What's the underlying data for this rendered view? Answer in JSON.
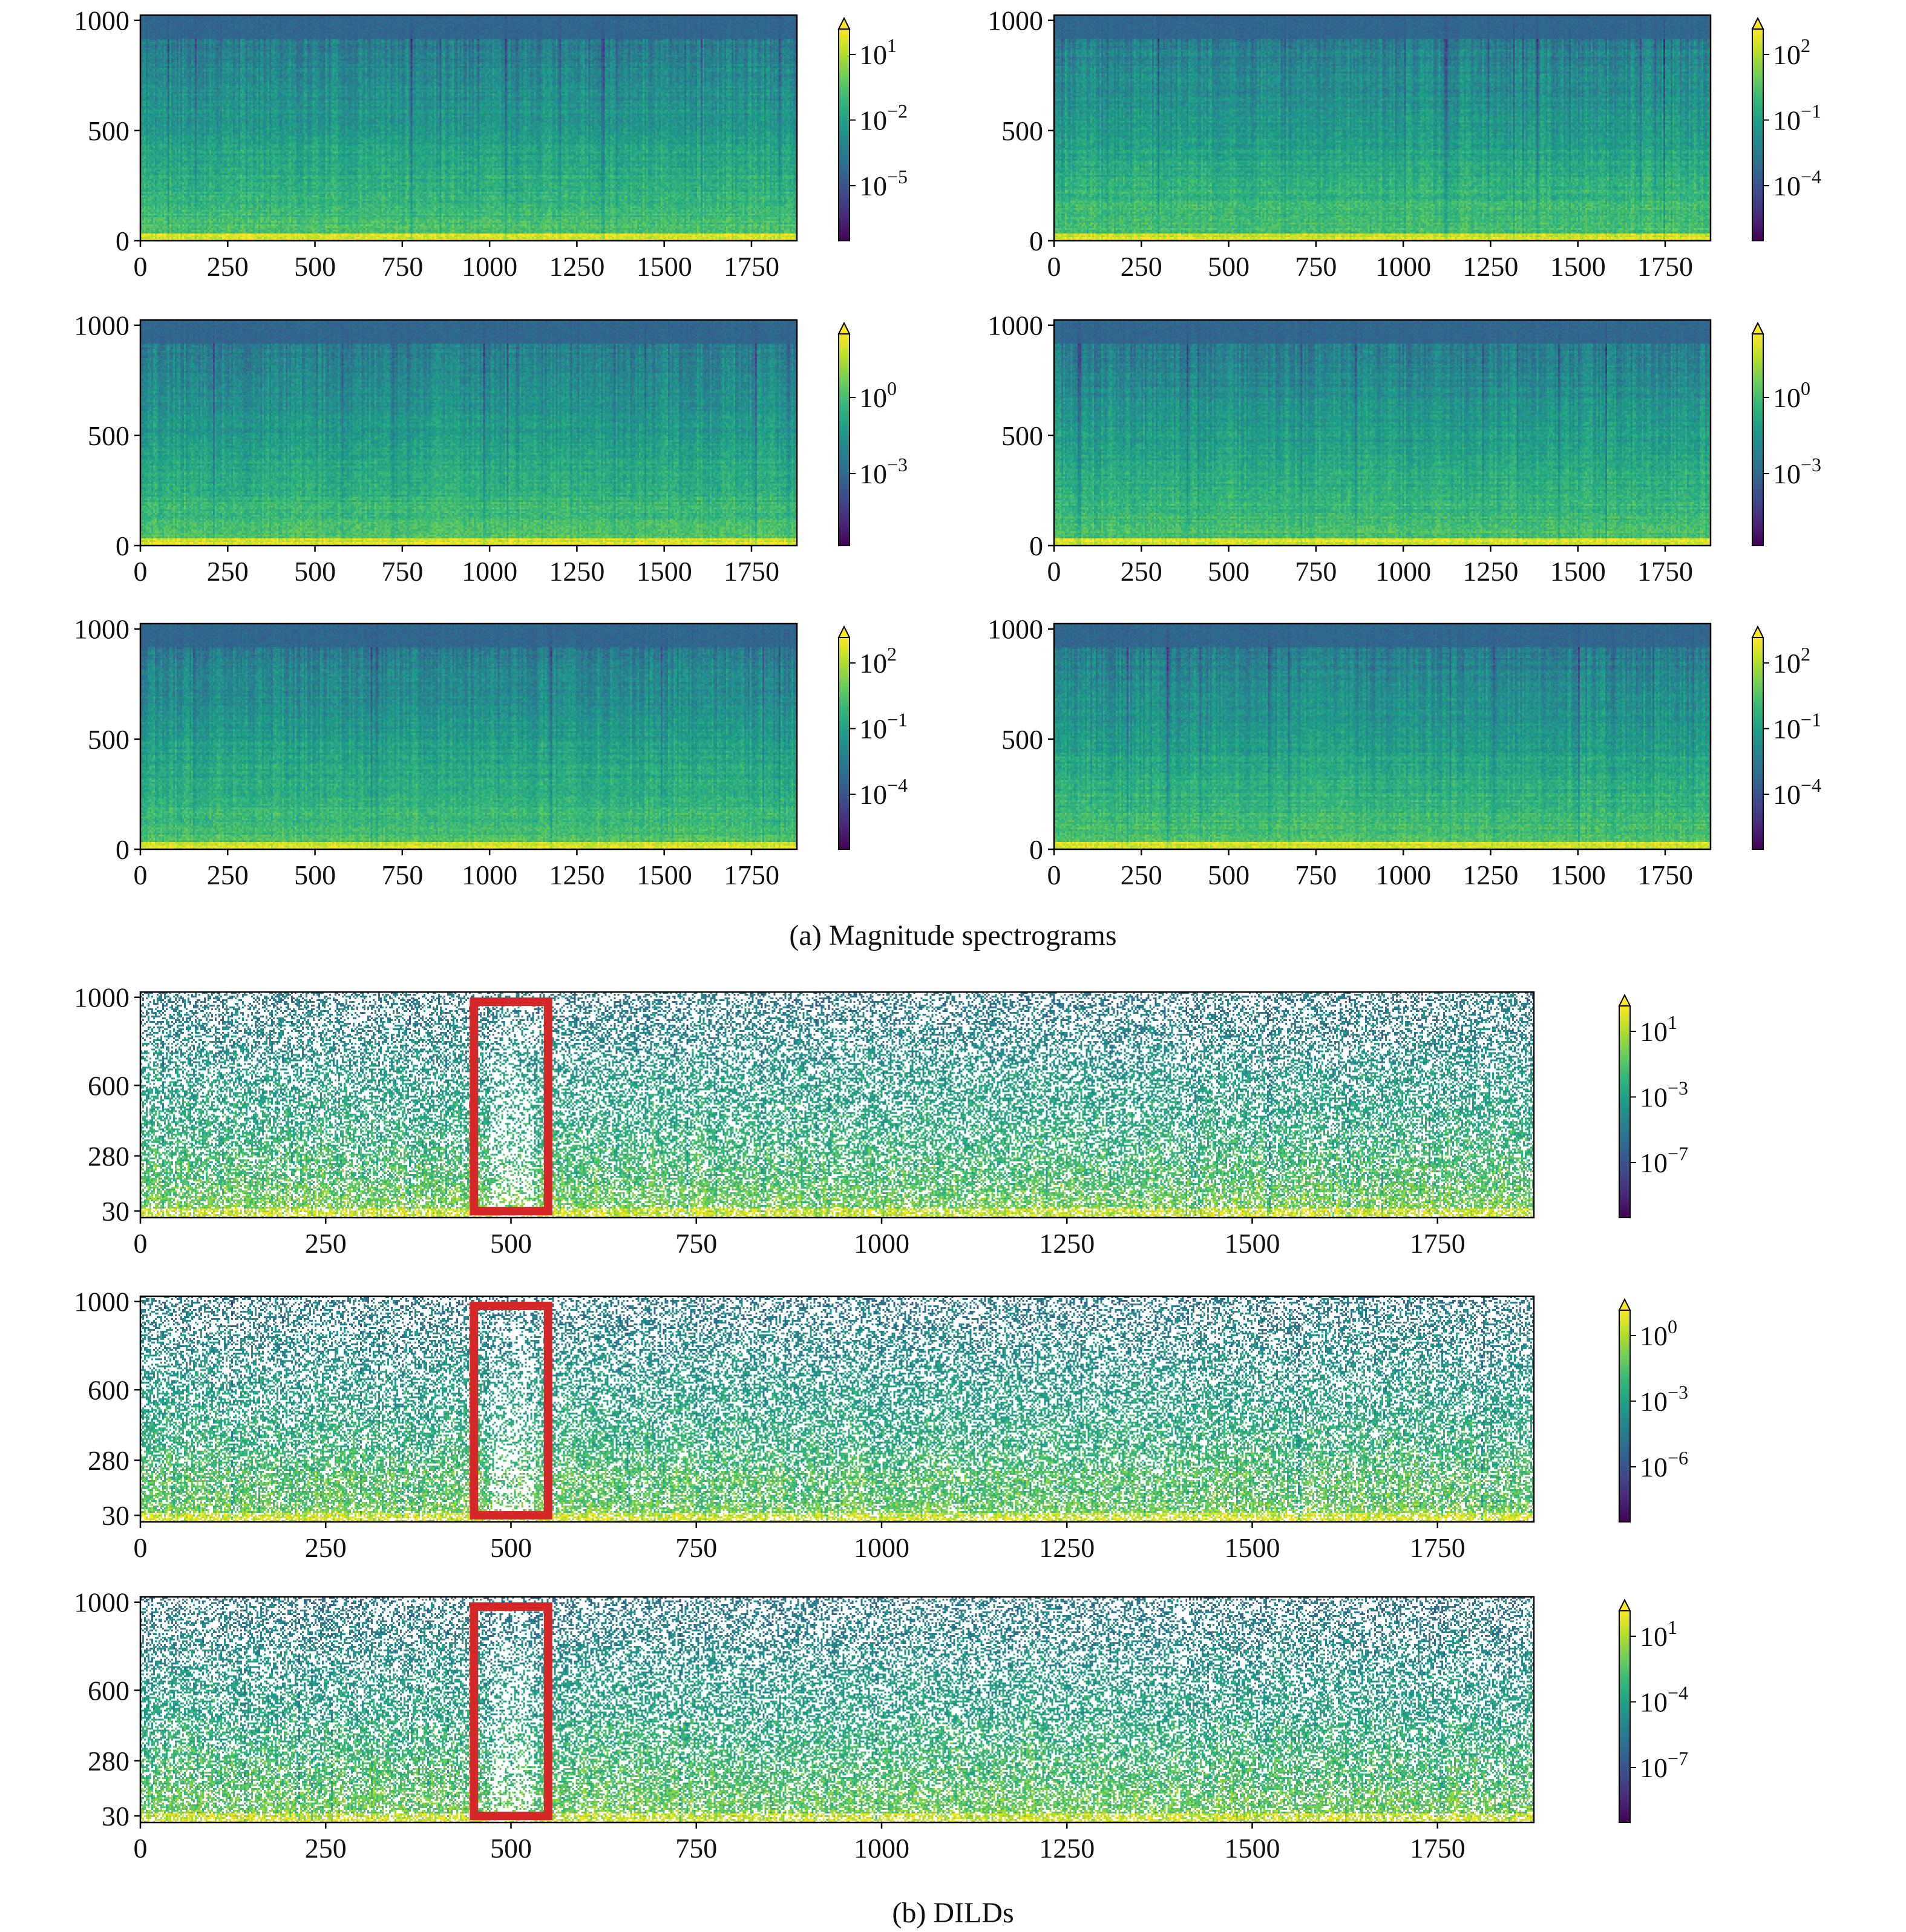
{
  "figure": {
    "caption_a": "(a) Magnitude spectrograms",
    "caption_b": "(b) DILDs"
  },
  "colormap": [
    "#440154",
    "#482878",
    "#3e4a89",
    "#31688e",
    "#26828e",
    "#1f9e89",
    "#35b779",
    "#6ece58",
    "#b5de2b",
    "#fde725"
  ],
  "chart_data": [
    {
      "id": "a1",
      "group": "a",
      "type": "heatmap",
      "style": "spectrogram",
      "title": "",
      "xlabel": "",
      "ylabel": "",
      "xlim": [
        0,
        1880
      ],
      "ylim": [
        0,
        1024
      ],
      "xticks": [
        0,
        250,
        500,
        750,
        1000,
        1250,
        1500,
        1750
      ],
      "yticks": [
        0,
        500,
        1000
      ],
      "colorbar": {
        "scale": "log",
        "extend": "max",
        "ticks": [
          {
            "label": "10",
            "exp": "1"
          },
          {
            "label": "10",
            "exp": "−2"
          },
          {
            "label": "10",
            "exp": "−5"
          }
        ]
      },
      "seed": 11
    },
    {
      "id": "a2",
      "group": "a",
      "type": "heatmap",
      "style": "spectrogram",
      "title": "",
      "xlabel": "",
      "ylabel": "",
      "xlim": [
        0,
        1880
      ],
      "ylim": [
        0,
        1024
      ],
      "xticks": [
        0,
        250,
        500,
        750,
        1000,
        1250,
        1500,
        1750
      ],
      "yticks": [
        0,
        500,
        1000
      ],
      "colorbar": {
        "scale": "log",
        "extend": "max",
        "ticks": [
          {
            "label": "10",
            "exp": "2"
          },
          {
            "label": "10",
            "exp": "−1"
          },
          {
            "label": "10",
            "exp": "−4"
          }
        ]
      },
      "seed": 23
    },
    {
      "id": "a3",
      "group": "a",
      "type": "heatmap",
      "style": "spectrogram",
      "title": "",
      "xlabel": "",
      "ylabel": "",
      "xlim": [
        0,
        1880
      ],
      "ylim": [
        0,
        1024
      ],
      "xticks": [
        0,
        250,
        500,
        750,
        1000,
        1250,
        1500,
        1750
      ],
      "yticks": [
        0,
        500,
        1000
      ],
      "colorbar": {
        "scale": "log",
        "extend": "max",
        "ticks": [
          {
            "label": "10",
            "exp": "0"
          },
          {
            "label": "10",
            "exp": "−3"
          }
        ]
      },
      "seed": 37
    },
    {
      "id": "a4",
      "group": "a",
      "type": "heatmap",
      "style": "spectrogram",
      "title": "",
      "xlabel": "",
      "ylabel": "",
      "xlim": [
        0,
        1880
      ],
      "ylim": [
        0,
        1024
      ],
      "xticks": [
        0,
        250,
        500,
        750,
        1000,
        1250,
        1500,
        1750
      ],
      "yticks": [
        0,
        500,
        1000
      ],
      "colorbar": {
        "scale": "log",
        "extend": "max",
        "ticks": [
          {
            "label": "10",
            "exp": "0"
          },
          {
            "label": "10",
            "exp": "−3"
          }
        ]
      },
      "seed": 41
    },
    {
      "id": "a5",
      "group": "a",
      "type": "heatmap",
      "style": "spectrogram",
      "title": "",
      "xlabel": "",
      "ylabel": "",
      "xlim": [
        0,
        1880
      ],
      "ylim": [
        0,
        1024
      ],
      "xticks": [
        0,
        250,
        500,
        750,
        1000,
        1250,
        1500,
        1750
      ],
      "yticks": [
        0,
        500,
        1000
      ],
      "colorbar": {
        "scale": "log",
        "extend": "max",
        "ticks": [
          {
            "label": "10",
            "exp": "2"
          },
          {
            "label": "10",
            "exp": "−1"
          },
          {
            "label": "10",
            "exp": "−4"
          }
        ]
      },
      "seed": 53
    },
    {
      "id": "a6",
      "group": "a",
      "type": "heatmap",
      "style": "spectrogram",
      "title": "",
      "xlabel": "",
      "ylabel": "",
      "xlim": [
        0,
        1880
      ],
      "ylim": [
        0,
        1024
      ],
      "xticks": [
        0,
        250,
        500,
        750,
        1000,
        1250,
        1500,
        1750
      ],
      "yticks": [
        0,
        500,
        1000
      ],
      "colorbar": {
        "scale": "log",
        "extend": "max",
        "ticks": [
          {
            "label": "10",
            "exp": "2"
          },
          {
            "label": "10",
            "exp": "−1"
          },
          {
            "label": "10",
            "exp": "−4"
          }
        ]
      },
      "seed": 67
    },
    {
      "id": "b1",
      "group": "b",
      "type": "heatmap",
      "style": "dild",
      "title": "",
      "xlabel": "",
      "ylabel": "",
      "xlim": [
        0,
        1880
      ],
      "ylim": [
        0,
        1024
      ],
      "xticks": [
        0,
        250,
        500,
        750,
        1000,
        1250,
        1500,
        1750
      ],
      "yticks": [
        30,
        280,
        600,
        1000
      ],
      "colorbar": {
        "scale": "log",
        "extend": "max",
        "ticks": [
          {
            "label": "10",
            "exp": "1"
          },
          {
            "label": "10",
            "exp": "−3"
          },
          {
            "label": "10",
            "exp": "−7"
          }
        ]
      },
      "highlight": {
        "x": [
          450,
          550
        ],
        "y": [
          30,
          980
        ],
        "color": "#d62728"
      },
      "seed": 71
    },
    {
      "id": "b2",
      "group": "b",
      "type": "heatmap",
      "style": "dild",
      "title": "",
      "xlabel": "",
      "ylabel": "",
      "xlim": [
        0,
        1880
      ],
      "ylim": [
        0,
        1024
      ],
      "xticks": [
        0,
        250,
        500,
        750,
        1000,
        1250,
        1500,
        1750
      ],
      "yticks": [
        30,
        280,
        600,
        1000
      ],
      "colorbar": {
        "scale": "log",
        "extend": "max",
        "ticks": [
          {
            "label": "10",
            "exp": "0"
          },
          {
            "label": "10",
            "exp": "−3"
          },
          {
            "label": "10",
            "exp": "−6"
          }
        ]
      },
      "highlight": {
        "x": [
          450,
          550
        ],
        "y": [
          30,
          980
        ],
        "color": "#d62728"
      },
      "seed": 83
    },
    {
      "id": "b3",
      "group": "b",
      "type": "heatmap",
      "style": "dild",
      "title": "",
      "xlabel": "",
      "ylabel": "",
      "xlim": [
        0,
        1880
      ],
      "ylim": [
        0,
        1024
      ],
      "xticks": [
        0,
        250,
        500,
        750,
        1000,
        1250,
        1500,
        1750
      ],
      "yticks": [
        30,
        280,
        600,
        1000
      ],
      "colorbar": {
        "scale": "log",
        "extend": "max",
        "ticks": [
          {
            "label": "10",
            "exp": "1"
          },
          {
            "label": "10",
            "exp": "−4"
          },
          {
            "label": "10",
            "exp": "−7"
          }
        ]
      },
      "highlight": {
        "x": [
          450,
          550
        ],
        "y": [
          30,
          980
        ],
        "color": "#d62728"
      },
      "seed": 97
    }
  ]
}
